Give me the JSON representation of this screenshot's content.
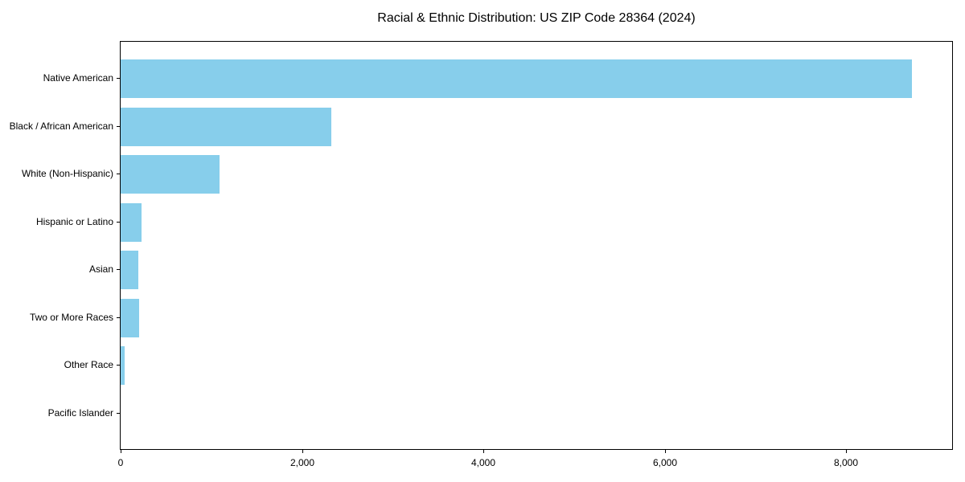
{
  "chart_data": {
    "type": "bar",
    "orientation": "horizontal",
    "title": "Racial & Ethnic Distribution: US ZIP Code 28364 (2024)",
    "categories": [
      "Native American",
      "Black / African American",
      "White (Non-Hispanic)",
      "Hispanic or Latino",
      "Asian",
      "Two or More Races",
      "Other Race",
      "Pacific Islander"
    ],
    "values": [
      8725,
      2320,
      1090,
      230,
      195,
      205,
      40,
      0
    ],
    "xlabel": "",
    "ylabel": "",
    "xlim": [
      0,
      9170
    ],
    "x_ticks": [
      0,
      2000,
      4000,
      6000,
      8000
    ],
    "x_tick_labels": [
      "0",
      "2,000",
      "4,000",
      "6,000",
      "8,000"
    ],
    "bar_color": "#87CEEB",
    "axis_color": "#000000",
    "text_color": "#000000",
    "background_color": "#FFFFFF",
    "grid": false,
    "legend": null
  }
}
